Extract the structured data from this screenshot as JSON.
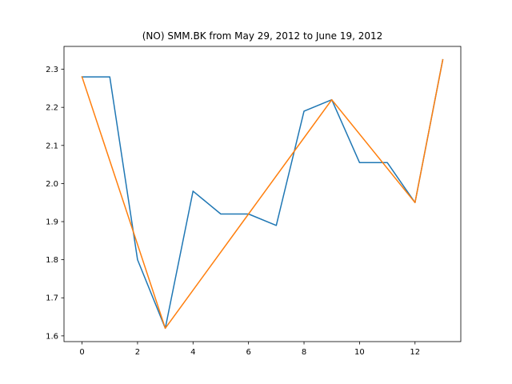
{
  "chart_data": {
    "type": "line",
    "title": "(NO) SMM.BK from May 29, 2012 to June 19, 2012",
    "xlabel": "",
    "ylabel": "",
    "xlim": [
      -0.65,
      13.65
    ],
    "ylim": [
      1.585,
      2.36
    ],
    "grid": false,
    "xticks": [
      0,
      2,
      4,
      6,
      8,
      10,
      12
    ],
    "xtick_labels": [
      "0",
      "2",
      "4",
      "6",
      "8",
      "10",
      "12"
    ],
    "yticks": [
      1.6,
      1.7,
      1.8,
      1.9,
      2.0,
      2.1,
      2.2,
      2.3
    ],
    "ytick_labels": [
      "1.6",
      "1.7",
      "1.8",
      "1.9",
      "2.0",
      "2.1",
      "2.2",
      "2.3"
    ],
    "series": [
      {
        "color": "#1f77b4",
        "x": [
          0,
          1,
          2,
          3,
          4,
          5,
          6,
          7,
          8,
          9,
          10,
          11,
          12,
          13
        ],
        "y": [
          2.28,
          2.28,
          1.8,
          1.62,
          1.98,
          1.92,
          1.92,
          1.89,
          2.19,
          2.22,
          2.055,
          2.055,
          1.95,
          2.325
        ]
      },
      {
        "color": "#ff7f0e",
        "x": [
          0,
          3,
          6,
          9,
          12,
          13
        ],
        "y": [
          2.28,
          1.62,
          1.92,
          2.22,
          1.95,
          2.325
        ]
      }
    ]
  }
}
